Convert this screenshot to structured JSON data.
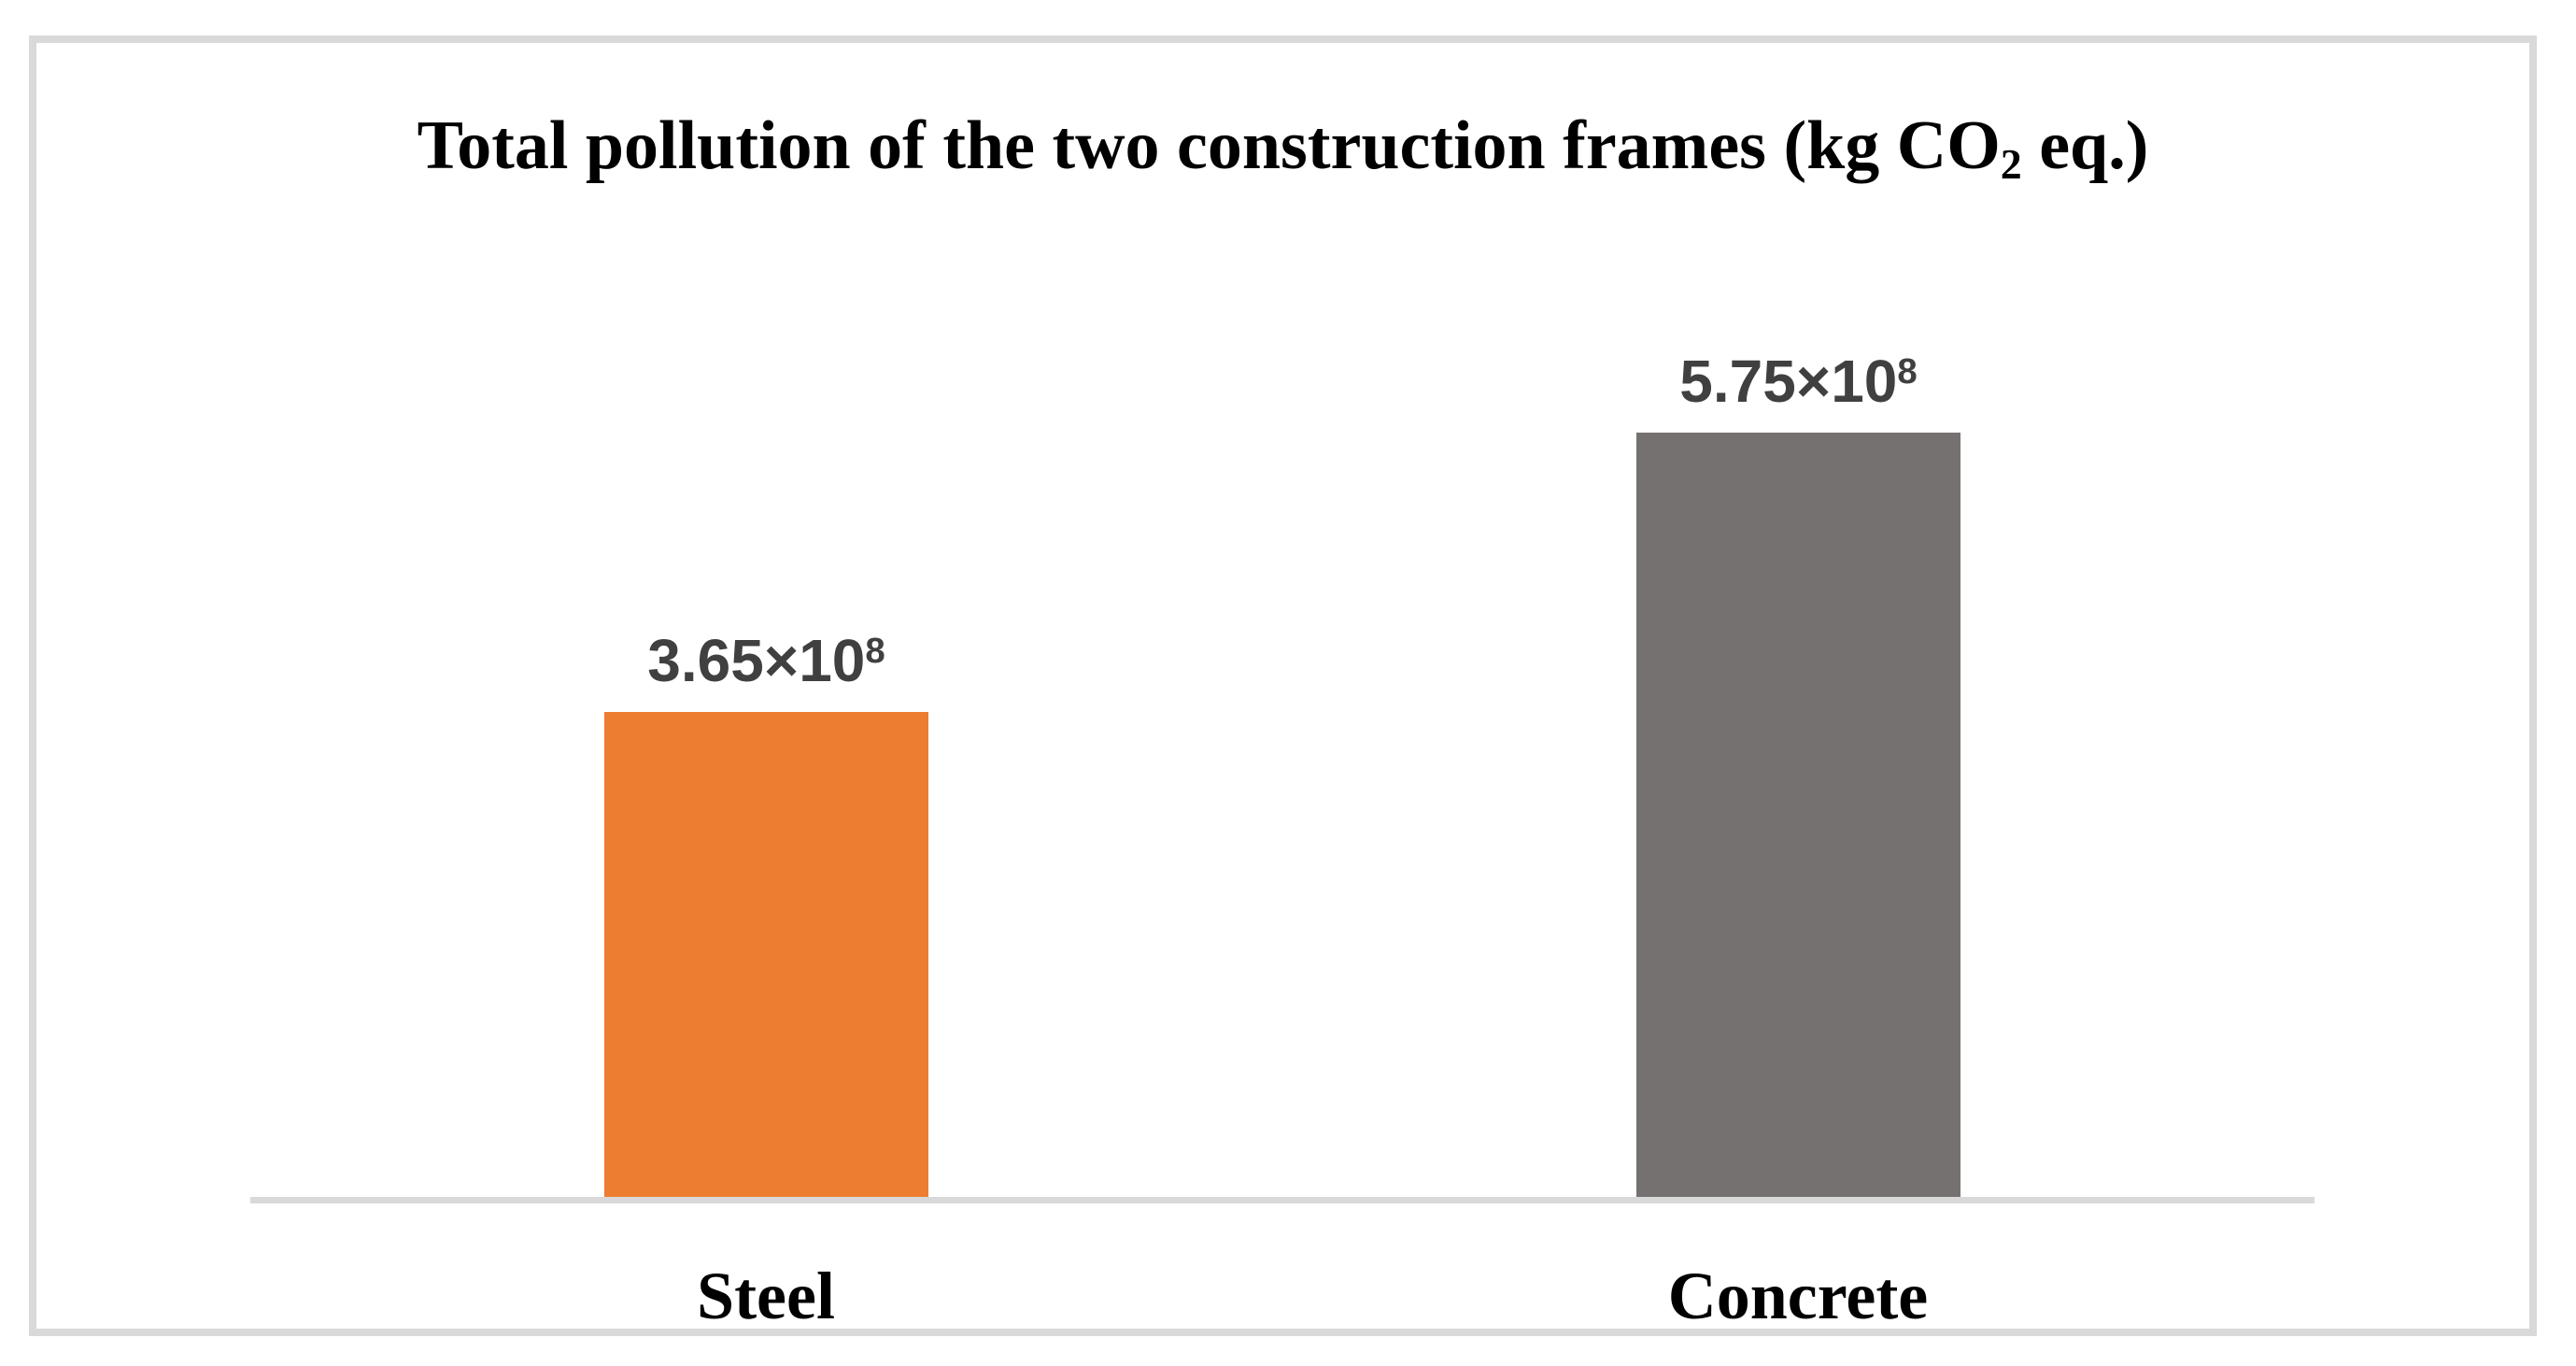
{
  "title_parts": {
    "pre": "Total pollution of the two construction frames (kg CO",
    "sub": "2",
    "post": " eq.)"
  },
  "chart_data": {
    "type": "bar",
    "title": "Total pollution of the two construction frames (kg CO₂ eq.)",
    "categories": [
      "Steel",
      "Concrete"
    ],
    "values": [
      365000000,
      575000000
    ],
    "value_labels": [
      {
        "mantissa": "3.65×10",
        "exponent": "8",
        "display": "3.65×10⁸"
      },
      {
        "mantissa": "5.75×10",
        "exponent": "8",
        "display": "5.75×10⁸"
      }
    ],
    "bar_colors": [
      "#ED7D31",
      "#767171"
    ],
    "data_label_color": "#404040",
    "axis_line_color": "#D9D9D9",
    "frame_border_color": "#D9D9D9",
    "xlabel": "",
    "ylabel": "",
    "ylim": [
      0,
      820000000
    ],
    "grid": false,
    "legend": "none",
    "y_axis_visible": false
  }
}
